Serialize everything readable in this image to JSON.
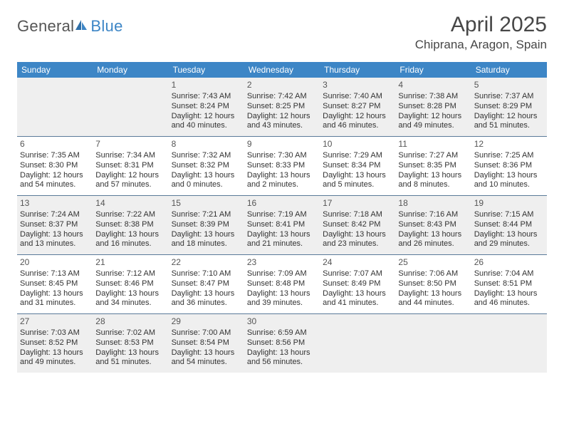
{
  "brand": {
    "text1": "General",
    "text2": "Blue"
  },
  "title": "April 2025",
  "location": "Chiprana, Aragon, Spain",
  "colors": {
    "header_bg": "#3d86c6",
    "header_text": "#ffffff",
    "rule": "#5a7a99",
    "shaded_bg": "#efefef",
    "body_text": "#333333",
    "title_text": "#474747",
    "logo_gray": "#555555",
    "logo_blue": "#3d86c6"
  },
  "day_labels": [
    "Sunday",
    "Monday",
    "Tuesday",
    "Wednesday",
    "Thursday",
    "Friday",
    "Saturday"
  ],
  "weeks": [
    [
      null,
      null,
      {
        "n": "1",
        "sr": "Sunrise: 7:43 AM",
        "ss": "Sunset: 8:24 PM",
        "dl": "Daylight: 12 hours and 40 minutes."
      },
      {
        "n": "2",
        "sr": "Sunrise: 7:42 AM",
        "ss": "Sunset: 8:25 PM",
        "dl": "Daylight: 12 hours and 43 minutes."
      },
      {
        "n": "3",
        "sr": "Sunrise: 7:40 AM",
        "ss": "Sunset: 8:27 PM",
        "dl": "Daylight: 12 hours and 46 minutes."
      },
      {
        "n": "4",
        "sr": "Sunrise: 7:38 AM",
        "ss": "Sunset: 8:28 PM",
        "dl": "Daylight: 12 hours and 49 minutes."
      },
      {
        "n": "5",
        "sr": "Sunrise: 7:37 AM",
        "ss": "Sunset: 8:29 PM",
        "dl": "Daylight: 12 hours and 51 minutes."
      }
    ],
    [
      {
        "n": "6",
        "sr": "Sunrise: 7:35 AM",
        "ss": "Sunset: 8:30 PM",
        "dl": "Daylight: 12 hours and 54 minutes."
      },
      {
        "n": "7",
        "sr": "Sunrise: 7:34 AM",
        "ss": "Sunset: 8:31 PM",
        "dl": "Daylight: 12 hours and 57 minutes."
      },
      {
        "n": "8",
        "sr": "Sunrise: 7:32 AM",
        "ss": "Sunset: 8:32 PM",
        "dl": "Daylight: 13 hours and 0 minutes."
      },
      {
        "n": "9",
        "sr": "Sunrise: 7:30 AM",
        "ss": "Sunset: 8:33 PM",
        "dl": "Daylight: 13 hours and 2 minutes."
      },
      {
        "n": "10",
        "sr": "Sunrise: 7:29 AM",
        "ss": "Sunset: 8:34 PM",
        "dl": "Daylight: 13 hours and 5 minutes."
      },
      {
        "n": "11",
        "sr": "Sunrise: 7:27 AM",
        "ss": "Sunset: 8:35 PM",
        "dl": "Daylight: 13 hours and 8 minutes."
      },
      {
        "n": "12",
        "sr": "Sunrise: 7:25 AM",
        "ss": "Sunset: 8:36 PM",
        "dl": "Daylight: 13 hours and 10 minutes."
      }
    ],
    [
      {
        "n": "13",
        "sr": "Sunrise: 7:24 AM",
        "ss": "Sunset: 8:37 PM",
        "dl": "Daylight: 13 hours and 13 minutes."
      },
      {
        "n": "14",
        "sr": "Sunrise: 7:22 AM",
        "ss": "Sunset: 8:38 PM",
        "dl": "Daylight: 13 hours and 16 minutes."
      },
      {
        "n": "15",
        "sr": "Sunrise: 7:21 AM",
        "ss": "Sunset: 8:39 PM",
        "dl": "Daylight: 13 hours and 18 minutes."
      },
      {
        "n": "16",
        "sr": "Sunrise: 7:19 AM",
        "ss": "Sunset: 8:41 PM",
        "dl": "Daylight: 13 hours and 21 minutes."
      },
      {
        "n": "17",
        "sr": "Sunrise: 7:18 AM",
        "ss": "Sunset: 8:42 PM",
        "dl": "Daylight: 13 hours and 23 minutes."
      },
      {
        "n": "18",
        "sr": "Sunrise: 7:16 AM",
        "ss": "Sunset: 8:43 PM",
        "dl": "Daylight: 13 hours and 26 minutes."
      },
      {
        "n": "19",
        "sr": "Sunrise: 7:15 AM",
        "ss": "Sunset: 8:44 PM",
        "dl": "Daylight: 13 hours and 29 minutes."
      }
    ],
    [
      {
        "n": "20",
        "sr": "Sunrise: 7:13 AM",
        "ss": "Sunset: 8:45 PM",
        "dl": "Daylight: 13 hours and 31 minutes."
      },
      {
        "n": "21",
        "sr": "Sunrise: 7:12 AM",
        "ss": "Sunset: 8:46 PM",
        "dl": "Daylight: 13 hours and 34 minutes."
      },
      {
        "n": "22",
        "sr": "Sunrise: 7:10 AM",
        "ss": "Sunset: 8:47 PM",
        "dl": "Daylight: 13 hours and 36 minutes."
      },
      {
        "n": "23",
        "sr": "Sunrise: 7:09 AM",
        "ss": "Sunset: 8:48 PM",
        "dl": "Daylight: 13 hours and 39 minutes."
      },
      {
        "n": "24",
        "sr": "Sunrise: 7:07 AM",
        "ss": "Sunset: 8:49 PM",
        "dl": "Daylight: 13 hours and 41 minutes."
      },
      {
        "n": "25",
        "sr": "Sunrise: 7:06 AM",
        "ss": "Sunset: 8:50 PM",
        "dl": "Daylight: 13 hours and 44 minutes."
      },
      {
        "n": "26",
        "sr": "Sunrise: 7:04 AM",
        "ss": "Sunset: 8:51 PM",
        "dl": "Daylight: 13 hours and 46 minutes."
      }
    ],
    [
      {
        "n": "27",
        "sr": "Sunrise: 7:03 AM",
        "ss": "Sunset: 8:52 PM",
        "dl": "Daylight: 13 hours and 49 minutes."
      },
      {
        "n": "28",
        "sr": "Sunrise: 7:02 AM",
        "ss": "Sunset: 8:53 PM",
        "dl": "Daylight: 13 hours and 51 minutes."
      },
      {
        "n": "29",
        "sr": "Sunrise: 7:00 AM",
        "ss": "Sunset: 8:54 PM",
        "dl": "Daylight: 13 hours and 54 minutes."
      },
      {
        "n": "30",
        "sr": "Sunrise: 6:59 AM",
        "ss": "Sunset: 8:56 PM",
        "dl": "Daylight: 13 hours and 56 minutes."
      },
      null,
      null,
      null
    ]
  ]
}
